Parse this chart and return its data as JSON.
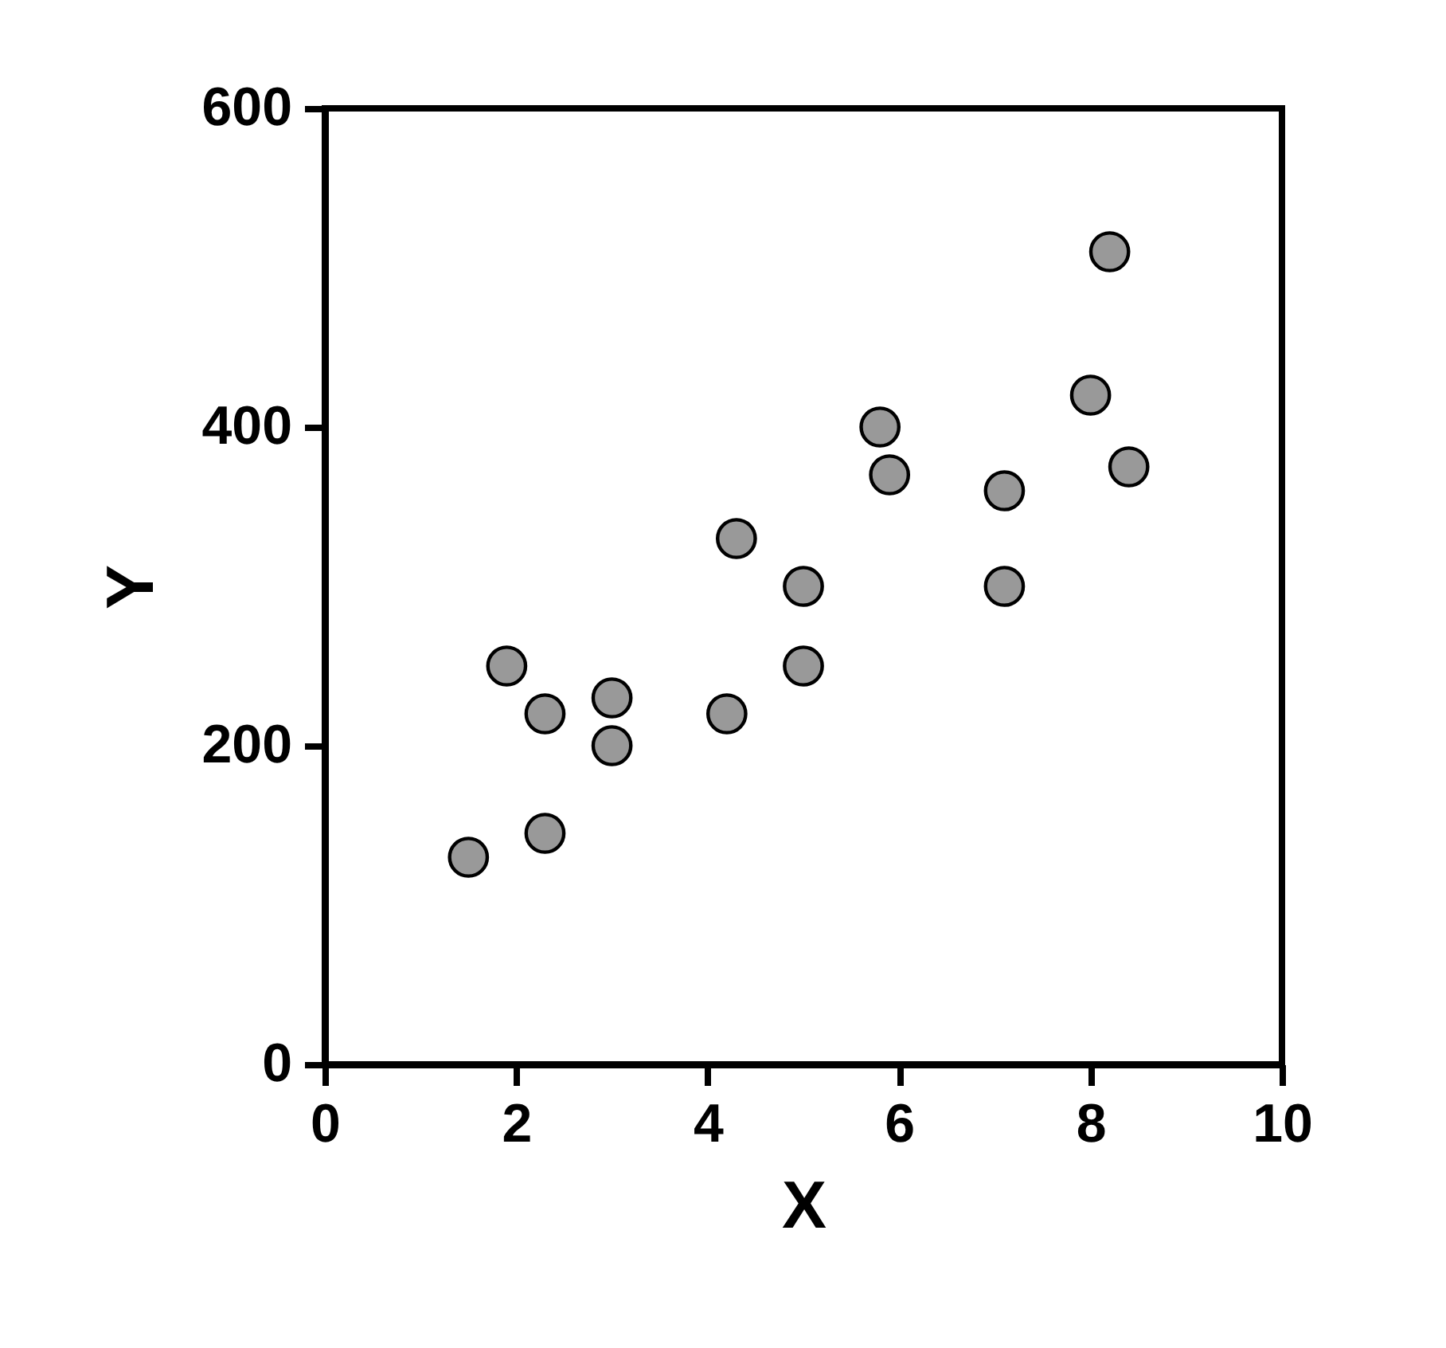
{
  "chart_data": {
    "type": "scatter",
    "xlabel": "X",
    "ylabel": "Y",
    "x": [
      1.5,
      1.9,
      2.3,
      2.3,
      3.0,
      3.0,
      4.2,
      4.3,
      5.0,
      5.0,
      5.8,
      5.9,
      7.1,
      7.1,
      8.0,
      8.2,
      8.4
    ],
    "values": [
      130,
      250,
      220,
      145,
      230,
      200,
      220,
      330,
      300,
      250,
      400,
      370,
      360,
      300,
      420,
      510,
      375
    ],
    "color": "#999999",
    "marker": "circle",
    "xlim": [
      0,
      10
    ],
    "xticks": [
      0,
      2,
      4,
      6,
      8,
      10
    ],
    "ylim": [
      0,
      600
    ],
    "yticks": [
      0,
      200,
      400,
      600
    ],
    "grid": false
  }
}
